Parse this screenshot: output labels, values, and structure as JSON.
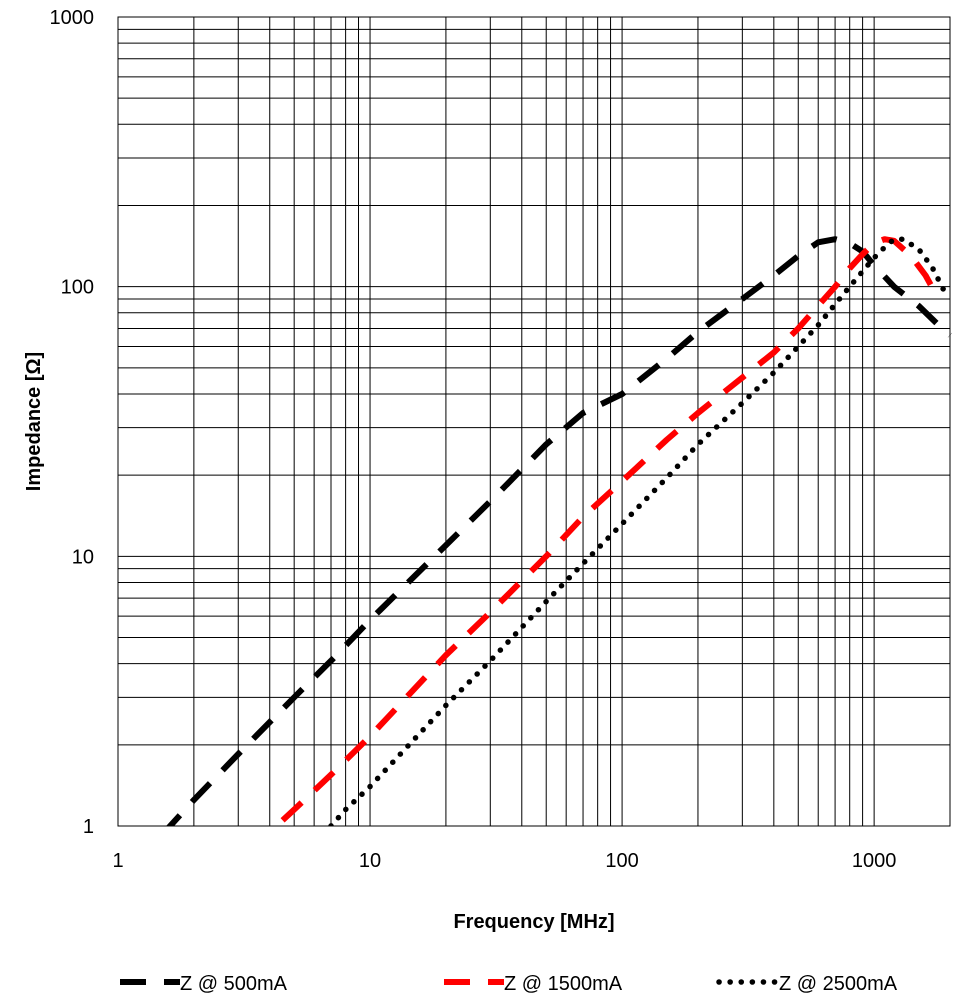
{
  "chart_data": {
    "type": "line",
    "xlabel": "Frequency [MHz]",
    "ylabel": "Impedance [Ω]",
    "x_scale": "log",
    "y_scale": "log",
    "xlim": [
      1,
      2000
    ],
    "ylim": [
      1,
      1000
    ],
    "x_ticks": [
      1,
      10,
      100,
      1000
    ],
    "x_tick_labels": [
      "1",
      "10",
      "100",
      "1000"
    ],
    "y_ticks": [
      1,
      10,
      100,
      1000
    ],
    "y_tick_labels": [
      "1",
      "10",
      "100",
      "1000"
    ],
    "grid": true,
    "legend_position": "bottom",
    "series": [
      {
        "name": "Z @ 500mA",
        "color": "#000000",
        "line_style": "dashed",
        "x": [
          1.5,
          2,
          3,
          5,
          7,
          10,
          20,
          30,
          50,
          70,
          100,
          150,
          200,
          300,
          400,
          500,
          600,
          700,
          800,
          900,
          1000,
          1200,
          1500,
          1800,
          2000
        ],
        "y": [
          0.93,
          1.25,
          1.85,
          3.0,
          4.1,
          5.8,
          11,
          16,
          26,
          34,
          40,
          54,
          68,
          90,
          110,
          130,
          146,
          150,
          145,
          135,
          120,
          100,
          85,
          72,
          66
        ]
      },
      {
        "name": "Z @ 1500mA",
        "color": "#ff0000",
        "line_style": "dashed",
        "x": [
          4.5,
          5,
          7,
          10,
          20,
          30,
          50,
          70,
          100,
          150,
          200,
          300,
          400,
          500,
          600,
          700,
          800,
          900,
          1000,
          1100,
          1200,
          1400,
          1600,
          1800
        ],
        "y": [
          1.05,
          1.15,
          1.55,
          2.15,
          4.3,
          6.2,
          10,
          14,
          19,
          27,
          34,
          46,
          57,
          70,
          85,
          100,
          117,
          132,
          145,
          150,
          148,
          130,
          110,
          90
        ]
      },
      {
        "name": "Z @ 2500mA",
        "color": "#000000",
        "line_style": "dotted",
        "x": [
          7,
          8,
          10,
          15,
          20,
          30,
          50,
          70,
          100,
          150,
          200,
          300,
          400,
          500,
          600,
          700,
          800,
          900,
          1000,
          1100,
          1200,
          1300,
          1500,
          1700,
          1900
        ],
        "y": [
          1.0,
          1.15,
          1.4,
          2.1,
          2.8,
          4.1,
          6.8,
          9.4,
          13.2,
          19.5,
          26,
          37,
          48,
          60,
          72,
          86,
          100,
          114,
          128,
          140,
          150,
          150,
          138,
          118,
          96
        ]
      }
    ]
  }
}
